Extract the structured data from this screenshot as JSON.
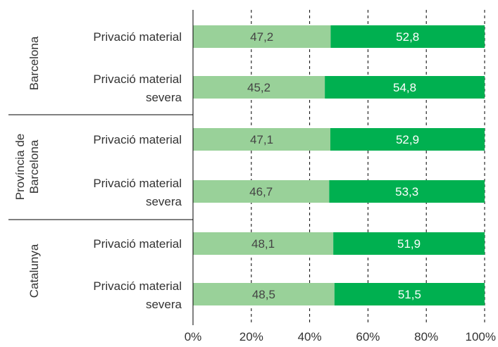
{
  "chart_data": {
    "type": "bar",
    "orientation": "horizontal",
    "stacked": true,
    "normalized_percent": true,
    "groups": [
      "Barcelona",
      "Província de Barcelona",
      "Catalunya"
    ],
    "group_label_lines": [
      [
        "Barcelona"
      ],
      [
        "Província de",
        "Barcelona"
      ],
      [
        "Catalunya"
      ]
    ],
    "rows": [
      {
        "group": 0,
        "label_lines": [
          "Privació material"
        ],
        "values": [
          47.2,
          52.8
        ],
        "labels": [
          "47,2",
          "52,8"
        ]
      },
      {
        "group": 0,
        "label_lines": [
          "Privació material",
          "severa"
        ],
        "values": [
          45.2,
          54.8
        ],
        "labels": [
          "45,2",
          "54,8"
        ]
      },
      {
        "group": 1,
        "label_lines": [
          "Privació material"
        ],
        "values": [
          47.1,
          52.9
        ],
        "labels": [
          "47,1",
          "52,9"
        ]
      },
      {
        "group": 1,
        "label_lines": [
          "Privació material",
          "severa"
        ],
        "values": [
          46.7,
          53.3
        ],
        "labels": [
          "46,7",
          "53,3"
        ]
      },
      {
        "group": 2,
        "label_lines": [
          "Privació material"
        ],
        "values": [
          48.1,
          51.9
        ],
        "labels": [
          "48,1",
          "51,9"
        ]
      },
      {
        "group": 2,
        "label_lines": [
          "Privació material",
          "severa"
        ],
        "values": [
          48.5,
          51.5
        ],
        "labels": [
          "48,5",
          "51,5"
        ]
      }
    ],
    "series_colors": [
      "#99d199",
      "#00b050"
    ],
    "value_label_colors": [
      "#444444",
      "#ffffff"
    ],
    "xlim": [
      0,
      100
    ],
    "xticks": [
      "0%",
      "20%",
      "40%",
      "60%",
      "80%",
      "100%"
    ],
    "grid": "vertical dashed",
    "legend": "none"
  }
}
